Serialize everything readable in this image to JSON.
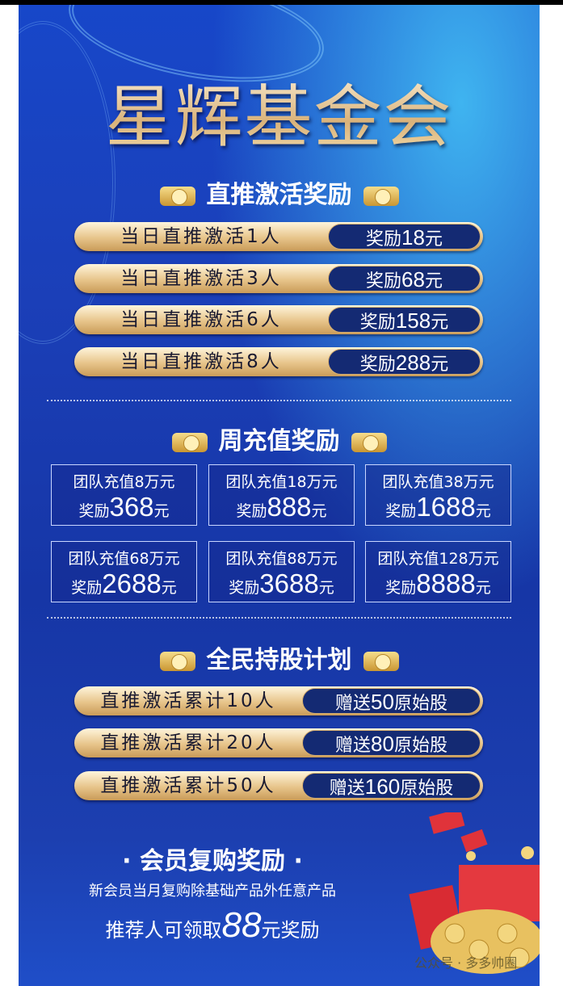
{
  "title": "星辉基金会",
  "section1": {
    "heading": "直推激活奖励",
    "rows": [
      {
        "label": "当日直推激活1人",
        "reward_prefix": "奖励",
        "amount": "18",
        "unit": "元"
      },
      {
        "label": "当日直推激活3人",
        "reward_prefix": "奖励",
        "amount": "68",
        "unit": "元"
      },
      {
        "label": "当日直推激活6人",
        "reward_prefix": "奖励",
        "amount": "158",
        "unit": "元"
      },
      {
        "label": "当日直推激活8人",
        "reward_prefix": "奖励",
        "amount": "288",
        "unit": "元"
      }
    ]
  },
  "section2": {
    "heading": "周充值奖励",
    "boxes": [
      {
        "label": "团队充值8万元",
        "reward_prefix": "奖励",
        "amount": "368",
        "unit": "元"
      },
      {
        "label": "团队充值18万元",
        "reward_prefix": "奖励",
        "amount": "888",
        "unit": "元"
      },
      {
        "label": "团队充值38万元",
        "reward_prefix": "奖励",
        "amount": "1688",
        "unit": "元"
      },
      {
        "label": "团队充值68万元",
        "reward_prefix": "奖励",
        "amount": "2688",
        "unit": "元"
      },
      {
        "label": "团队充值88万元",
        "reward_prefix": "奖励",
        "amount": "3688",
        "unit": "元"
      },
      {
        "label": "团队充值128万元",
        "reward_prefix": "奖励",
        "amount": "8888",
        "unit": "元"
      }
    ]
  },
  "section3": {
    "heading": "全民持股计划",
    "rows": [
      {
        "label": "直推激活累计10人",
        "reward_prefix": "赠送",
        "amount": "50",
        "unit": "原始股"
      },
      {
        "label": "直推激活累计20人",
        "reward_prefix": "赠送",
        "amount": "80",
        "unit": "原始股"
      },
      {
        "label": "直推激活累计50人",
        "reward_prefix": "赠送",
        "amount": "160",
        "unit": "原始股"
      }
    ]
  },
  "section4": {
    "heading": "· 会员复购奖励 ·",
    "line1": "新会员当月复购除基础产品外任意产品",
    "line2_prefix": "推荐人可领取",
    "line2_amount": "88",
    "line2_suffix": "元奖励"
  },
  "watermark": "公众号 · 多多帅圈",
  "colors": {
    "background": "#1b3fb8",
    "gold": "#e7c48a",
    "dark_pill": "#142a73"
  }
}
